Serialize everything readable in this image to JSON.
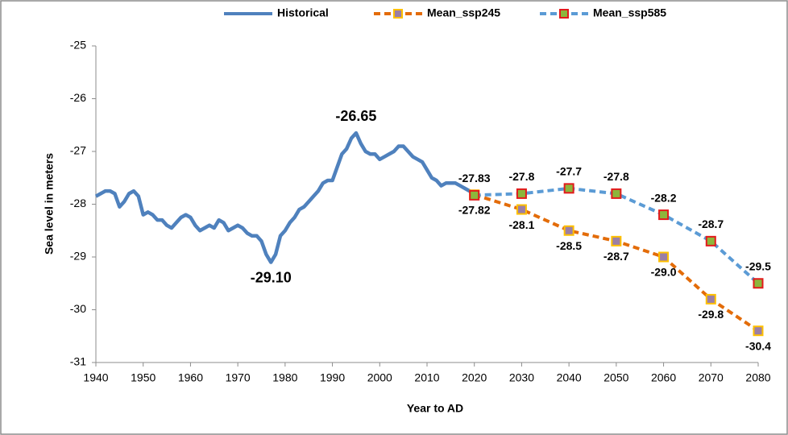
{
  "chart_data": {
    "type": "line",
    "xlabel": "Year to AD",
    "ylabel": "Sea level in meters",
    "xlim": [
      1940,
      2080
    ],
    "xticks": [
      1940,
      1950,
      1960,
      1970,
      1980,
      1990,
      2000,
      2010,
      2020,
      2030,
      2040,
      2050,
      2060,
      2070,
      2080
    ],
    "ylim": [
      -31,
      -25
    ],
    "yticks": [
      -31,
      -30,
      -29,
      -28,
      -27,
      -26,
      -25
    ],
    "grid": false,
    "legend": "top",
    "series": [
      {
        "name": "Historical",
        "color": "#4f81bd",
        "dashed": false,
        "markers": false,
        "x": [
          1940,
          1941,
          1942,
          1943,
          1944,
          1945,
          1946,
          1947,
          1948,
          1949,
          1950,
          1951,
          1952,
          1953,
          1954,
          1955,
          1956,
          1957,
          1958,
          1959,
          1960,
          1961,
          1962,
          1963,
          1964,
          1965,
          1966,
          1967,
          1968,
          1969,
          1970,
          1971,
          1972,
          1973,
          1974,
          1975,
          1976,
          1977,
          1978,
          1979,
          1980,
          1981,
          1982,
          1983,
          1984,
          1985,
          1986,
          1987,
          1988,
          1989,
          1990,
          1991,
          1992,
          1993,
          1994,
          1995,
          1996,
          1997,
          1998,
          1999,
          2000,
          2001,
          2002,
          2003,
          2004,
          2005,
          2006,
          2007,
          2008,
          2009,
          2010,
          2011,
          2012,
          2013,
          2014,
          2015,
          2016,
          2017,
          2018,
          2019,
          2020
        ],
        "values": [
          -27.85,
          -27.8,
          -27.75,
          -27.75,
          -27.8,
          -28.05,
          -27.95,
          -27.8,
          -27.75,
          -27.85,
          -28.2,
          -28.15,
          -28.2,
          -28.3,
          -28.3,
          -28.4,
          -28.45,
          -28.35,
          -28.25,
          -28.2,
          -28.25,
          -28.4,
          -28.5,
          -28.45,
          -28.4,
          -28.45,
          -28.3,
          -28.35,
          -28.5,
          -28.45,
          -28.4,
          -28.45,
          -28.55,
          -28.6,
          -28.6,
          -28.7,
          -28.95,
          -29.1,
          -28.95,
          -28.6,
          -28.5,
          -28.35,
          -28.25,
          -28.1,
          -28.05,
          -27.95,
          -27.85,
          -27.75,
          -27.6,
          -27.55,
          -27.55,
          -27.3,
          -27.05,
          -26.95,
          -26.75,
          -26.65,
          -26.85,
          -27.0,
          -27.05,
          -27.05,
          -27.15,
          -27.1,
          -27.05,
          -27.0,
          -26.9,
          -26.9,
          -27.0,
          -27.1,
          -27.15,
          -27.2,
          -27.35,
          -27.5,
          -27.55,
          -27.65,
          -27.6,
          -27.6,
          -27.6,
          -27.65,
          -27.7,
          -27.75,
          -27.82
        ]
      },
      {
        "name": "Mean_ssp245",
        "color": "#e36c09",
        "dashed": true,
        "markers": true,
        "marker_fill": "#9b7fa6",
        "marker_edge": "#ffc000",
        "label_position": "below",
        "x": [
          2020,
          2030,
          2040,
          2050,
          2060,
          2070,
          2080
        ],
        "values": [
          -27.82,
          -28.1,
          -28.5,
          -28.7,
          -29.0,
          -29.8,
          -30.4
        ],
        "value_labels": [
          "-27.82",
          "-28.1",
          "-28.5",
          "-28.7",
          "-29.0",
          "-29.8",
          "-30.4"
        ]
      },
      {
        "name": "Mean_ssp585",
        "color": "#5b9bd5",
        "dashed": true,
        "markers": true,
        "marker_fill": "#8db63c",
        "marker_edge": "#e31a1c",
        "label_position": "above",
        "x": [
          2020,
          2030,
          2040,
          2050,
          2060,
          2070,
          2080
        ],
        "values": [
          -27.83,
          -27.8,
          -27.7,
          -27.8,
          -28.2,
          -28.7,
          -29.5
        ],
        "value_labels": [
          "-27.83",
          "-27.8",
          "-27.7",
          "-27.8",
          "-28.2",
          "-28.7",
          "-29.5"
        ]
      }
    ],
    "annotations": [
      {
        "x": 1995,
        "y": -26.65,
        "label": "-26.65"
      },
      {
        "x": 1977,
        "y": -29.1,
        "label": "-29.10"
      }
    ]
  }
}
